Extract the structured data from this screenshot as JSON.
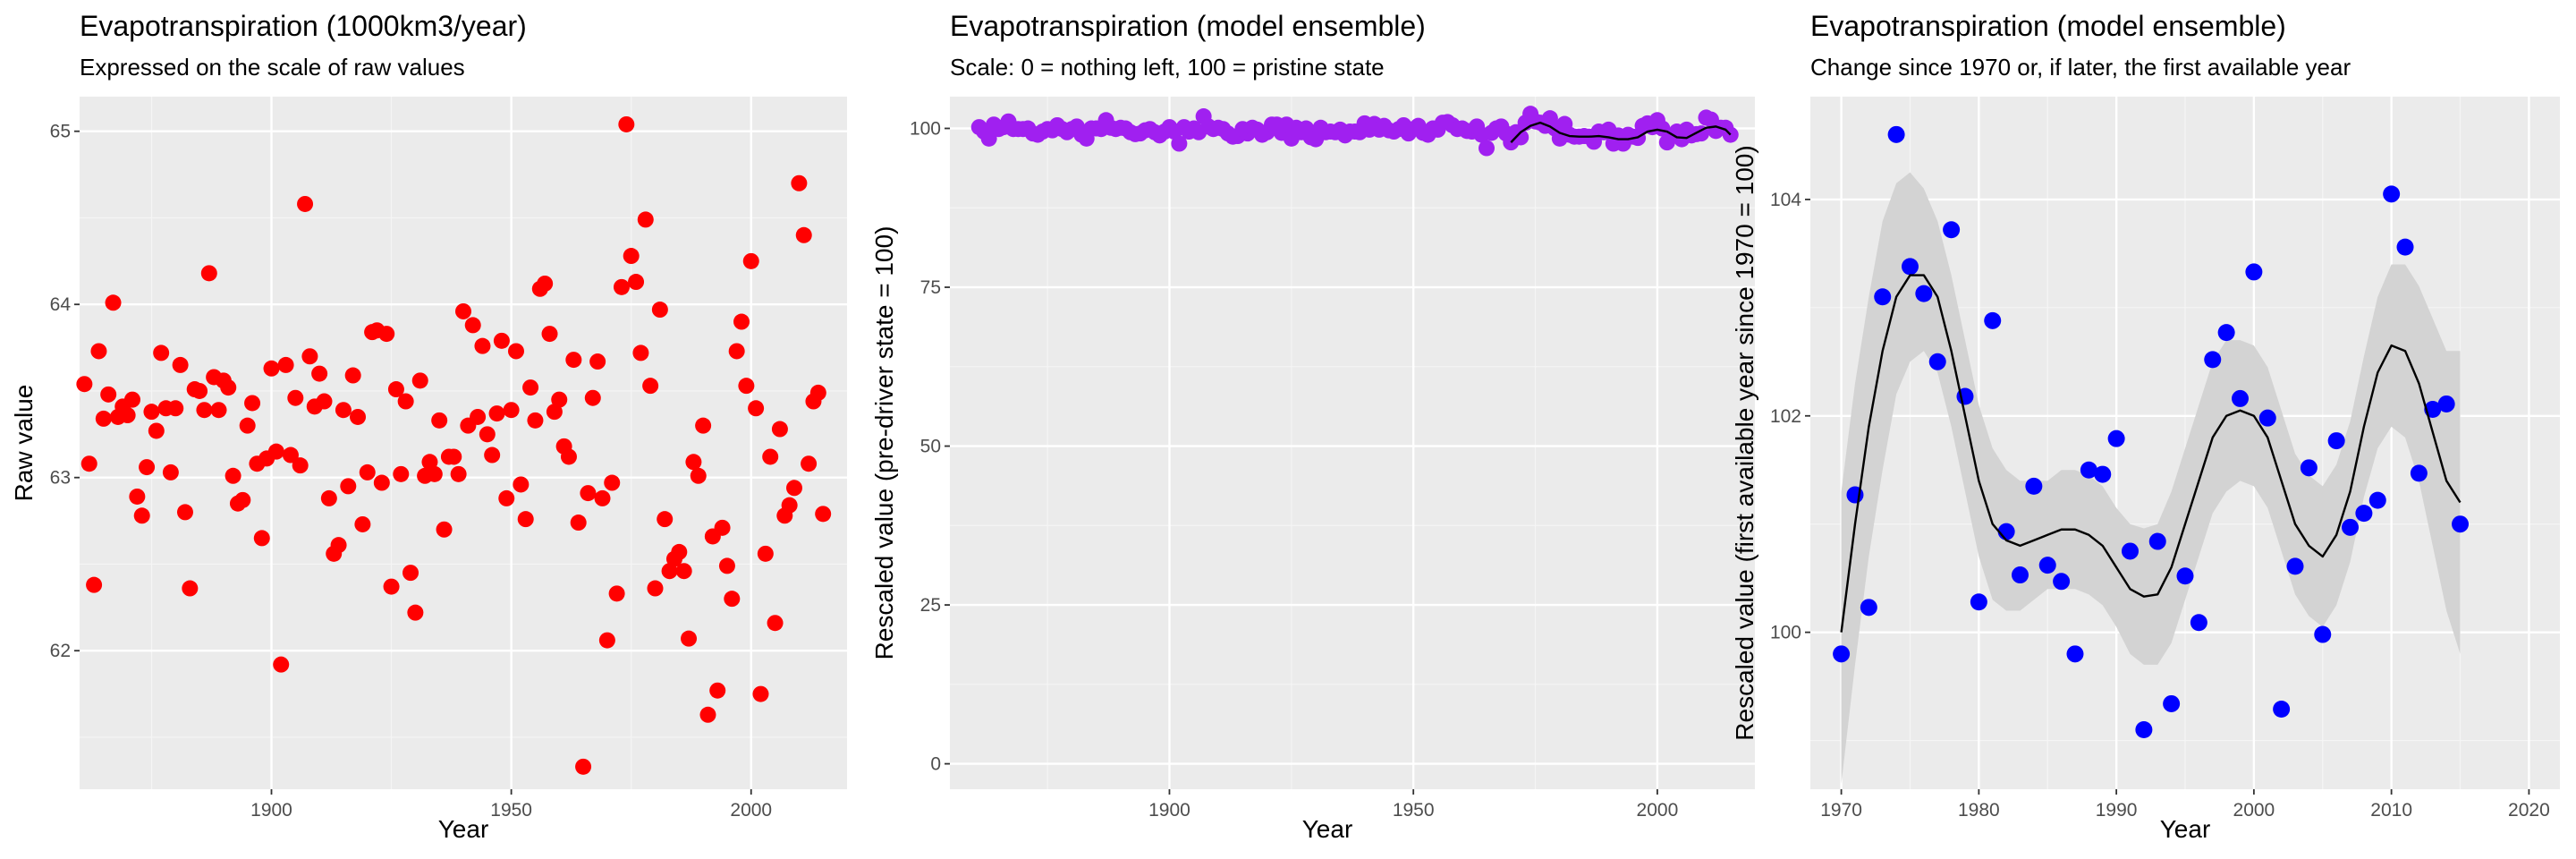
{
  "chart_data": [
    {
      "type": "scatter",
      "title": "Evapotranspiration (1000km3/year)",
      "subtitle": "Expressed on the scale of raw values",
      "xlabel": "Year",
      "ylabel": "Raw value",
      "xlim": [
        1860,
        2020
      ],
      "ylim": [
        61.2,
        65.2
      ],
      "xticks": [
        1900,
        1950,
        2000
      ],
      "yticks": [
        62,
        63,
        64,
        65
      ],
      "grid": true,
      "legend": "none",
      "point_color": "#ff0000",
      "x": [
        1861,
        1862,
        1863,
        1864,
        1865,
        1866,
        1867,
        1868,
        1869,
        1870,
        1871,
        1872,
        1873,
        1874,
        1875,
        1876,
        1877,
        1878,
        1879,
        1880,
        1881,
        1882,
        1883,
        1884,
        1885,
        1886,
        1887,
        1888,
        1889,
        1890,
        1891,
        1892,
        1893,
        1894,
        1895,
        1896,
        1897,
        1898,
        1899,
        1900,
        1901,
        1902,
        1903,
        1904,
        1905,
        1906,
        1907,
        1908,
        1909,
        1910,
        1911,
        1912,
        1913,
        1914,
        1915,
        1916,
        1917,
        1918,
        1919,
        1920,
        1921,
        1922,
        1923,
        1924,
        1925,
        1926,
        1927,
        1928,
        1929,
        1930,
        1931,
        1932,
        1933,
        1934,
        1935,
        1936,
        1937,
        1938,
        1939,
        1940,
        1941,
        1942,
        1943,
        1944,
        1945,
        1946,
        1947,
        1948,
        1949,
        1950,
        1951,
        1952,
        1953,
        1954,
        1955,
        1956,
        1957,
        1958,
        1959,
        1960,
        1961,
        1962,
        1963,
        1964,
        1965,
        1966,
        1967,
        1968,
        1969,
        1970,
        1971,
        1972,
        1973,
        1974,
        1975,
        1976,
        1977,
        1978,
        1979,
        1980,
        1981,
        1982,
        1983,
        1984,
        1985,
        1986,
        1987,
        1988,
        1989,
        1990,
        1991,
        1992,
        1993,
        1994,
        1995,
        1996,
        1997,
        1998,
        1999,
        2000,
        2001,
        2002,
        2003,
        2004,
        2005,
        2006,
        2007,
        2008,
        2009,
        2010,
        2011,
        2012,
        2013,
        2014,
        2015
      ],
      "y": [
        63.54,
        63.08,
        62.38,
        63.73,
        63.34,
        63.48,
        64.01,
        63.35,
        63.41,
        63.36,
        63.45,
        62.89,
        62.78,
        63.06,
        63.38,
        63.27,
        63.72,
        63.4,
        63.03,
        63.4,
        63.65,
        62.8,
        62.36,
        63.51,
        63.5,
        63.39,
        64.18,
        63.58,
        63.39,
        63.56,
        63.52,
        63.01,
        62.85,
        62.87,
        63.3,
        63.43,
        63.08,
        62.65,
        63.11,
        63.63,
        63.15,
        61.92,
        63.65,
        63.13,
        63.46,
        63.07,
        64.58,
        63.7,
        63.41,
        63.6,
        63.44,
        62.88,
        62.56,
        62.61,
        63.39,
        62.95,
        63.59,
        63.35,
        62.73,
        63.03,
        63.84,
        63.85,
        62.97,
        63.83,
        62.37,
        63.51,
        63.02,
        63.44,
        62.45,
        62.22,
        63.56,
        63.01,
        63.09,
        63.02,
        63.33,
        62.7,
        63.12,
        63.12,
        63.02,
        63.96,
        63.3,
        63.88,
        63.35,
        63.76,
        63.25,
        63.13,
        63.37,
        63.79,
        62.88,
        63.39,
        63.73,
        62.96,
        62.76,
        63.52,
        63.33,
        64.09,
        64.12,
        63.83,
        63.38,
        63.45,
        63.18,
        63.12,
        63.68,
        62.74,
        61.33,
        62.91,
        63.46,
        63.67,
        62.88,
        62.06,
        62.97,
        62.33,
        64.1,
        65.04,
        64.28,
        64.13,
        63.72,
        64.49,
        63.53,
        62.36,
        63.97,
        62.76,
        62.46,
        62.53,
        62.57,
        62.46,
        62.07,
        63.09,
        63.01,
        63.3,
        61.63,
        62.66,
        61.77,
        62.71,
        62.49,
        62.3,
        63.73,
        63.9,
        63.53,
        64.25,
        63.4,
        61.75,
        62.56,
        63.12,
        62.16,
        63.28,
        62.78,
        62.84,
        62.94,
        64.7,
        64.4,
        63.08,
        63.44,
        63.49,
        62.79
      ]
    },
    {
      "type": "scatter",
      "title": "Evapotranspiration (model ensemble)",
      "subtitle": "Scale: 0 = nothing left, 100 = pristine state",
      "xlabel": "Year",
      "ylabel": "Rescaled value (pre-driver state = 100)",
      "xlim": [
        1855,
        2020
      ],
      "ylim": [
        -4,
        105
      ],
      "xticks": [
        1900,
        1950,
        2000
      ],
      "yticks": [
        0,
        25,
        50,
        75,
        100
      ],
      "grid": true,
      "legend": "none",
      "point_color": "#a020f0",
      "x": [
        1861,
        1862,
        1863,
        1864,
        1865,
        1866,
        1867,
        1868,
        1869,
        1870,
        1871,
        1872,
        1873,
        1874,
        1875,
        1876,
        1877,
        1878,
        1879,
        1880,
        1881,
        1882,
        1883,
        1884,
        1885,
        1886,
        1887,
        1888,
        1889,
        1890,
        1891,
        1892,
        1893,
        1894,
        1895,
        1896,
        1897,
        1898,
        1899,
        1900,
        1901,
        1902,
        1903,
        1904,
        1905,
        1906,
        1907,
        1908,
        1909,
        1910,
        1911,
        1912,
        1913,
        1914,
        1915,
        1916,
        1917,
        1918,
        1919,
        1920,
        1921,
        1922,
        1923,
        1924,
        1925,
        1926,
        1927,
        1928,
        1929,
        1930,
        1931,
        1932,
        1933,
        1934,
        1935,
        1936,
        1937,
        1938,
        1939,
        1940,
        1941,
        1942,
        1943,
        1944,
        1945,
        1946,
        1947,
        1948,
        1949,
        1950,
        1951,
        1952,
        1953,
        1954,
        1955,
        1956,
        1957,
        1958,
        1959,
        1960,
        1961,
        1962,
        1963,
        1964,
        1965,
        1966,
        1967,
        1968,
        1969,
        1970,
        1971,
        1972,
        1973,
        1974,
        1975,
        1976,
        1977,
        1978,
        1979,
        1980,
        1981,
        1982,
        1983,
        1984,
        1985,
        1986,
        1987,
        1988,
        1989,
        1990,
        1991,
        1992,
        1993,
        1994,
        1995,
        1996,
        1997,
        1998,
        1999,
        2000,
        2001,
        2002,
        2003,
        2004,
        2005,
        2006,
        2007,
        2008,
        2009,
        2010,
        2011,
        2012,
        2013,
        2014,
        2015
      ],
      "y": [
        100.2,
        99.5,
        98.4,
        100.6,
        99.9,
        100.2,
        101.1,
        99.9,
        99.9,
        99.9,
        100.0,
        99.2,
        99.0,
        99.5,
        99.9,
        99.7,
        100.5,
        99.9,
        99.4,
        99.9,
        100.3,
        99.0,
        98.4,
        100.0,
        100.0,
        99.9,
        101.3,
        100.1,
        99.9,
        100.1,
        100.0,
        99.4,
        99.1,
        99.2,
        99.7,
        99.9,
        99.4,
        98.9,
        99.5,
        100.2,
        99.5,
        97.6,
        100.2,
        99.5,
        100.0,
        99.4,
        101.9,
        100.3,
        99.9,
        100.1,
        99.9,
        99.2,
        98.7,
        98.8,
        99.9,
        99.2,
        100.1,
        99.8,
        99.0,
        99.4,
        100.6,
        100.6,
        99.3,
        100.6,
        98.4,
        100.1,
        99.4,
        100.0,
        98.6,
        98.3,
        100.1,
        99.4,
        99.5,
        99.4,
        99.8,
        98.9,
        99.5,
        99.5,
        99.4,
        100.8,
        99.8,
        100.7,
        99.8,
        100.4,
        99.7,
        99.5,
        99.9,
        100.5,
        99.2,
        99.9,
        100.4,
        99.3,
        99.0,
        100.0,
        99.8,
        100.9,
        101.0,
        100.5,
        99.9,
        100.0,
        99.6,
        99.5,
        100.3,
        99.0,
        96.9,
        99.3,
        100.0,
        100.3,
        99.2,
        97.8,
        99.4,
        98.6,
        100.9,
        102.3,
        101.1,
        100.9,
        100.4,
        101.6,
        100.0,
        98.4,
        100.7,
        99.0,
        98.7,
        98.7,
        98.8,
        98.7,
        97.9,
        99.5,
        99.4,
        99.8,
        97.6,
        98.9,
        97.6,
        99.0,
        98.7,
        98.5,
        100.4,
        100.8,
        100.2,
        101.3,
        100.0,
        97.8,
        98.9,
        99.5,
        98.3,
        99.8,
        98.9,
        99.1,
        99.2,
        101.7,
        101.4,
        99.6,
        100.1,
        100.1,
        99.0
      ],
      "smooth_x": [
        1970,
        1972,
        1974,
        1976,
        1978,
        1980,
        1982,
        1984,
        1986,
        1988,
        1990,
        1992,
        1994,
        1996,
        1998,
        2000,
        2002,
        2004,
        2006,
        2008,
        2010,
        2012,
        2014,
        2015
      ],
      "smooth_y": [
        97.8,
        99.4,
        100.4,
        100.9,
        100.3,
        99.3,
        98.8,
        98.7,
        98.7,
        98.8,
        98.6,
        98.3,
        98.3,
        98.6,
        99.5,
        99.8,
        99.5,
        98.6,
        98.5,
        99.3,
        100.1,
        100.3,
        99.8,
        99.0
      ]
    },
    {
      "type": "scatter",
      "title": "Evapotranspiration (model ensemble)",
      "subtitle": "Change since 1970 or, if later, the first available year",
      "xlabel": "Year",
      "ylabel": "Rescaled value (first available year since 1970 = 100)",
      "xlim": [
        1967.75,
        2022.25
      ],
      "ylim": [
        98.55,
        104.95
      ],
      "xticks": [
        1970,
        1980,
        1990,
        2000,
        2010,
        2020
      ],
      "yticks": [
        100,
        102,
        104
      ],
      "grid": true,
      "legend": "none",
      "point_color": "#0000ff",
      "ribbon_color": "#d3d3d3",
      "x": [
        1970,
        1971,
        1972,
        1973,
        1974,
        1975,
        1976,
        1977,
        1978,
        1979,
        1980,
        1981,
        1982,
        1983,
        1984,
        1985,
        1986,
        1987,
        1988,
        1989,
        1990,
        1991,
        1992,
        1993,
        1994,
        1995,
        1996,
        1997,
        1998,
        1999,
        2000,
        2001,
        2002,
        2003,
        2004,
        2005,
        2006,
        2007,
        2008,
        2009,
        2010,
        2011,
        2012,
        2013,
        2014,
        2015
      ],
      "y": [
        99.8,
        101.27,
        100.23,
        103.1,
        104.6,
        103.38,
        103.13,
        102.5,
        103.72,
        102.18,
        100.28,
        102.88,
        100.93,
        100.53,
        101.35,
        100.62,
        100.47,
        99.8,
        101.5,
        101.46,
        101.79,
        100.75,
        99.1,
        100.84,
        99.34,
        100.52,
        100.09,
        102.52,
        102.77,
        102.16,
        103.33,
        101.98,
        99.29,
        100.61,
        101.52,
        99.98,
        101.77,
        100.97,
        101.1,
        101.22,
        104.05,
        103.56,
        101.47,
        102.06,
        102.11,
        101.0
      ],
      "smooth_x": [
        1970,
        1971,
        1972,
        1973,
        1974,
        1975,
        1976,
        1977,
        1978,
        1979,
        1980,
        1981,
        1982,
        1983,
        1984,
        1985,
        1986,
        1987,
        1988,
        1989,
        1990,
        1991,
        1992,
        1993,
        1994,
        1995,
        1996,
        1997,
        1998,
        1999,
        2000,
        2001,
        2002,
        2003,
        2004,
        2005,
        2006,
        2007,
        2008,
        2009,
        2010,
        2011,
        2012,
        2013,
        2014,
        2015
      ],
      "smooth_y": [
        100.0,
        101.0,
        101.9,
        102.6,
        103.1,
        103.3,
        103.3,
        103.1,
        102.6,
        102.0,
        101.4,
        101.0,
        100.85,
        100.8,
        100.85,
        100.9,
        100.95,
        100.95,
        100.9,
        100.8,
        100.6,
        100.4,
        100.33,
        100.35,
        100.6,
        101.0,
        101.4,
        101.8,
        102.0,
        102.05,
        102.0,
        101.8,
        101.4,
        101.0,
        100.8,
        100.7,
        100.9,
        101.3,
        101.9,
        102.4,
        102.65,
        102.6,
        102.3,
        101.85,
        101.4,
        101.2
      ],
      "ribbon_lower": [
        98.6,
        99.7,
        100.7,
        101.5,
        102.2,
        102.5,
        102.6,
        102.4,
        101.9,
        101.3,
        100.7,
        100.3,
        100.2,
        100.2,
        100.3,
        100.4,
        100.4,
        100.4,
        100.35,
        100.25,
        100.05,
        99.8,
        99.7,
        99.7,
        99.9,
        100.3,
        100.7,
        101.1,
        101.3,
        101.4,
        101.35,
        101.15,
        100.75,
        100.35,
        100.15,
        100.05,
        100.25,
        100.65,
        101.25,
        101.7,
        101.9,
        101.8,
        101.4,
        100.8,
        100.2,
        99.8
      ],
      "ribbon_upper": [
        101.3,
        102.3,
        103.1,
        103.8,
        104.15,
        104.25,
        104.1,
        103.8,
        103.3,
        102.7,
        102.1,
        101.7,
        101.5,
        101.4,
        101.4,
        101.4,
        101.5,
        101.5,
        101.45,
        101.35,
        101.15,
        101.0,
        100.96,
        101.0,
        101.3,
        101.7,
        102.1,
        102.5,
        102.7,
        102.7,
        102.65,
        102.45,
        102.05,
        101.65,
        101.45,
        101.35,
        101.55,
        101.95,
        102.55,
        103.1,
        103.4,
        103.4,
        103.2,
        102.9,
        102.6,
        102.6
      ]
    }
  ]
}
